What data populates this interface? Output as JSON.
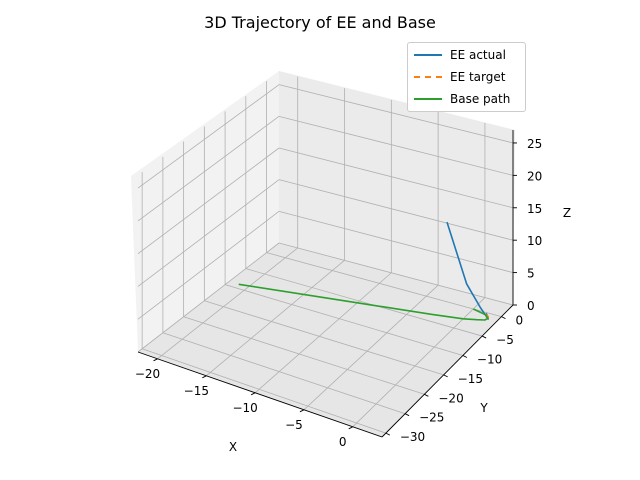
{
  "chart_data": {
    "type": "line",
    "projection": "3d",
    "title": "3D Trajectory of EE and Base",
    "xlabel": "X",
    "ylabel": "Y",
    "zlabel": "Z",
    "xlim": [
      -22,
      3
    ],
    "ylim": [
      -31,
      3
    ],
    "zlim": [
      0,
      27
    ],
    "x_ticks": [
      -20,
      -15,
      -10,
      -5,
      0
    ],
    "y_ticks": [
      0,
      -5,
      -10,
      -15,
      -20,
      -25,
      -30
    ],
    "z_ticks": [
      0,
      5,
      10,
      15,
      20,
      25
    ],
    "grid": true,
    "legend_position": "top-right",
    "series": [
      {
        "name": "EE actual",
        "color": "#1f77b4",
        "style": "solid",
        "points": [
          [
            -3,
            0.5,
            12
          ],
          [
            -0.5,
            -0.5,
            4
          ],
          [
            1.2,
            -1,
            1.2
          ],
          [
            1.9,
            -1.4,
            0.6
          ],
          [
            2.2,
            -1.5,
            0.2
          ],
          [
            2,
            -1,
            0.1
          ],
          [
            1.5,
            -0.3,
            0.1
          ]
        ]
      },
      {
        "name": "EE target",
        "color": "#ff7f0e",
        "style": "dashed",
        "points": [
          [
            2.2,
            -1.5,
            0.2
          ],
          [
            2,
            -1,
            0.1
          ],
          [
            1.5,
            -0.3,
            0.1
          ]
        ]
      },
      {
        "name": "Base path",
        "color": "#2ca02c",
        "style": "solid",
        "points": [
          [
            0,
            0,
            0
          ],
          [
            1.5,
            -0.5,
            0
          ],
          [
            2,
            -1.1,
            0
          ],
          [
            1.9,
            -1.6,
            0
          ],
          [
            1.2,
            -2.0,
            0
          ],
          [
            0,
            -2.6,
            0
          ],
          [
            -3,
            -3.5,
            0
          ],
          [
            -10,
            -5.5,
            0
          ],
          [
            -21,
            -9,
            0
          ]
        ]
      }
    ]
  }
}
